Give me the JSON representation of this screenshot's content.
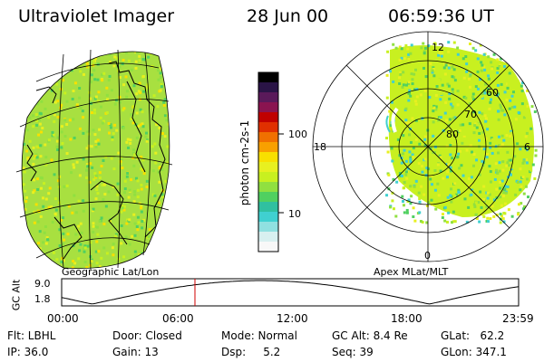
{
  "header": {
    "instrument": "Ultraviolet Imager",
    "date": "28 Jun 00",
    "time": "06:59:36 UT"
  },
  "colorbar": {
    "label": "photon cm-2s-1",
    "ticks": [
      "100",
      "10"
    ],
    "colors": [
      "#000000",
      "#2a1446",
      "#5a1a5a",
      "#8a1450",
      "#c00000",
      "#e03000",
      "#f07000",
      "#f8a000",
      "#f8e000",
      "#e8f020",
      "#c8f020",
      "#90e040",
      "#50d060",
      "#30c0a0",
      "#40d0d0",
      "#90e0e0",
      "#d8f0f0",
      "#f8f8f8"
    ]
  },
  "left_map": {
    "label": "Geographic Lat/Lon",
    "fill_color": "#a8e040"
  },
  "right_map": {
    "label": "Apex MLat/MLT",
    "lat_labels": [
      "60",
      "70",
      "80"
    ],
    "mlt_labels": [
      "12",
      "18",
      "6",
      "0"
    ]
  },
  "altitude_plot": {
    "ylabel": "GC Alt",
    "yticks": [
      "9.0",
      "1.8"
    ],
    "xticks": [
      "00:00",
      "06:00",
      "12:00",
      "18:00",
      "23:59"
    ],
    "marker_hour": 7.0,
    "marker_color": "#d00000"
  },
  "status": {
    "flt": "Flt: LBHL",
    "ip": "IP: 36.0",
    "door": "Door: Closed",
    "gain": "Gain: 13",
    "mode": "Mode: Normal",
    "dsp": "Dsp:     5.2",
    "gcalt": "GC Alt: 8.4 Re",
    "seq": "Seq: 39",
    "glat": "GLat:   62.2",
    "glon": "GLon: 347.1"
  }
}
